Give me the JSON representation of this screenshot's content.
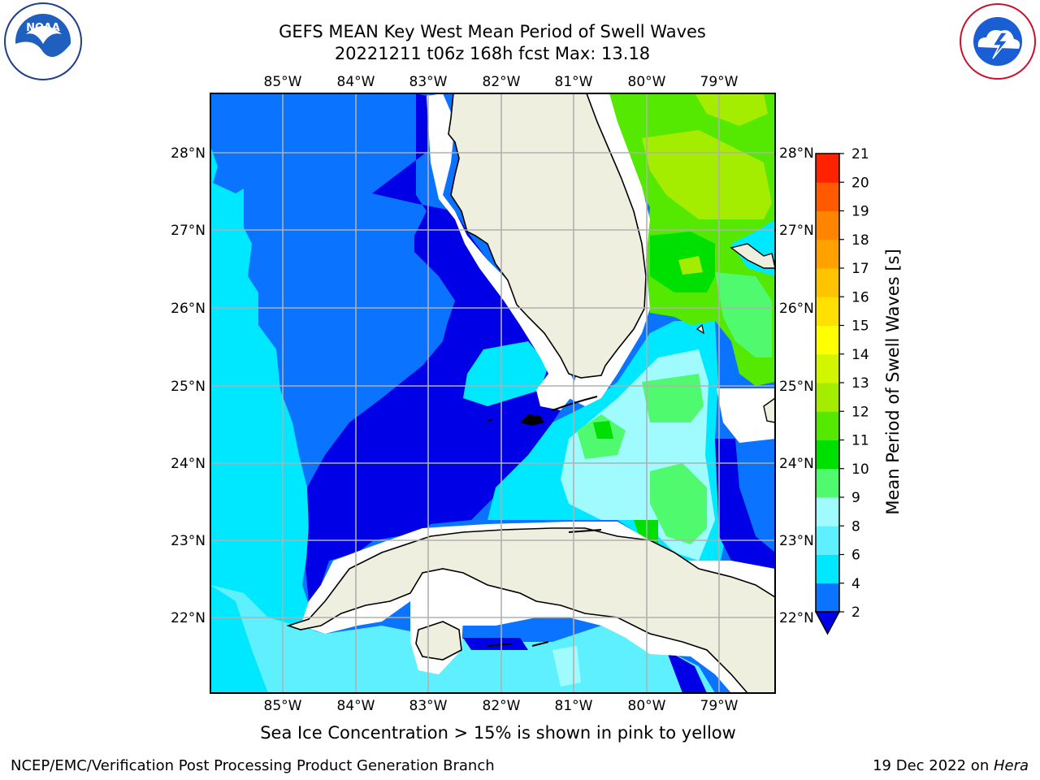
{
  "header": {
    "title_line1": "GEFS MEAN Key West Mean Period of Swell Waves",
    "title_line2": "20221211 t06z 168h fcst   Max: 13.18"
  },
  "logos": {
    "left": "noaa-logo",
    "right": "nws-logo"
  },
  "map": {
    "lon_labels": [
      "85°W",
      "84°W",
      "83°W",
      "82°W",
      "81°W",
      "80°W",
      "79°W"
    ],
    "lat_labels": [
      "28°N",
      "27°N",
      "26°N",
      "25°N",
      "24°N",
      "23°N",
      "22°N"
    ]
  },
  "colorbar": {
    "label": "Mean Period of Swell Waves [s]",
    "ticks": [
      "2",
      "4",
      "6",
      "8",
      "9",
      "10",
      "11",
      "12",
      "13",
      "14",
      "15",
      "16",
      "17",
      "18",
      "19",
      "20",
      "21"
    ],
    "colors": [
      "#0a73ff",
      "#00e8ff",
      "#5ff0ff",
      "#a0fbff",
      "#50fa6e",
      "#00e000",
      "#55e800",
      "#a4ec00",
      "#d2f500",
      "#ffff00",
      "#ffe000",
      "#ffc400",
      "#ffa200",
      "#ff8400",
      "#ff5a00",
      "#ff2200"
    ],
    "under_color": "#0000e6"
  },
  "footer": {
    "note": "Sea Ice Concentration > 15% is shown in pink to yellow",
    "credit_left": "NCEP/EMC/Verification Post Processing Product Generation Branch",
    "credit_right_date": "19 Dec 2022 on ",
    "credit_right_host": "Hera"
  }
}
